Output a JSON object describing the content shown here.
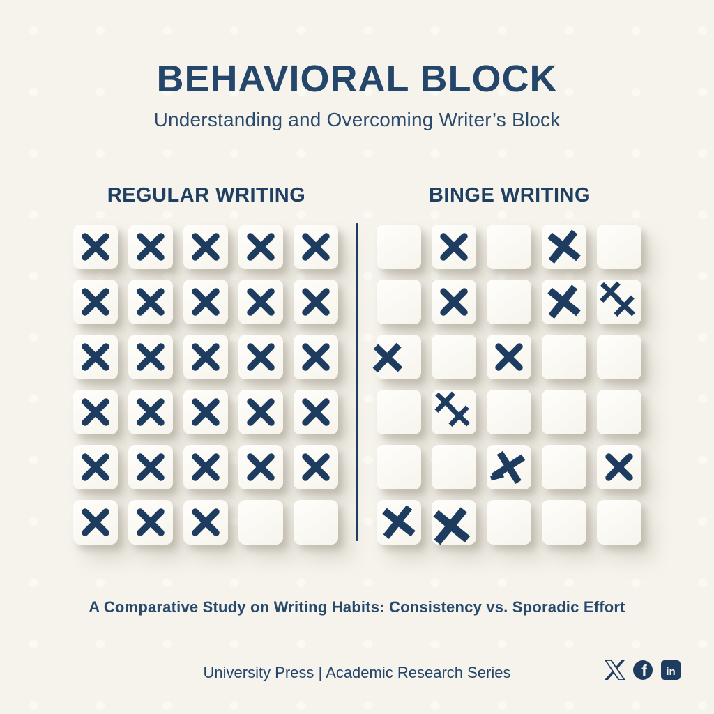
{
  "page": {
    "title": "BEHAVIORAL BLOCK",
    "subtitle": "Understanding and Overcoming Writer’s Block",
    "caption": "A Comparative Study on Writing Habits: Consistency vs. Sporadic Effort",
    "footer": "University Press | Academic Research Series"
  },
  "colors": {
    "background": "#f5f3ec",
    "navy": "#1e3c60",
    "title_navy": "#24466b",
    "tile": "#fcfbf7"
  },
  "mark_types": {
    "x": "clean rounded cross",
    "bx": "brush-stroke cross",
    "bx-left": "brush cross shifted to left edge",
    "bx-big": "large brush cross overhanging tile",
    "bx-extra": "brush cross with extra small stroke",
    "xx": "two overlapping brush crosses",
    "": "empty tile"
  },
  "grids": {
    "left": {
      "title": "REGULAR WRITING",
      "rows": [
        [
          "x",
          "x",
          "x",
          "x",
          "x"
        ],
        [
          "x",
          "x",
          "x",
          "x",
          "x"
        ],
        [
          "x",
          "x",
          "x",
          "x",
          "x"
        ],
        [
          "x",
          "x",
          "x",
          "x",
          "x"
        ],
        [
          "x",
          "x",
          "x",
          "x",
          "x"
        ],
        [
          "x",
          "x",
          "x",
          "",
          ""
        ]
      ]
    },
    "right": {
      "title": "BINGE WRITING",
      "rows": [
        [
          "",
          "x",
          "",
          "bx",
          ""
        ],
        [
          "",
          "x",
          "",
          "bx",
          "xx"
        ],
        [
          "bx-left",
          "",
          "x",
          "",
          ""
        ],
        [
          "",
          "xx",
          "",
          "",
          ""
        ],
        [
          "",
          "",
          "bx-extra",
          "",
          "x"
        ],
        [
          "bx",
          "bx-big",
          "",
          "",
          ""
        ]
      ]
    }
  },
  "social": {
    "icons": [
      {
        "name": "x-twitter-icon"
      },
      {
        "name": "facebook-icon"
      },
      {
        "name": "linkedin-icon"
      }
    ]
  }
}
